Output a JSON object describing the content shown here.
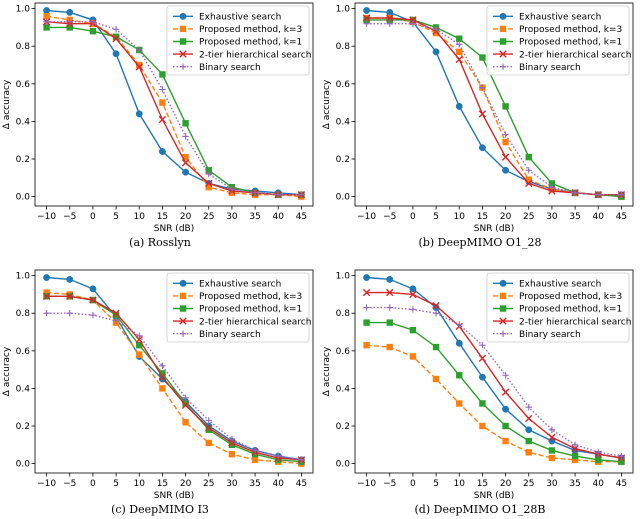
{
  "chart_data": [
    {
      "type": "line",
      "caption": "(a) Rosslyn",
      "xlabel": "SNR (dB)",
      "ylabel": "Δ accuracy",
      "x": [
        -10,
        -5,
        0,
        5,
        10,
        15,
        20,
        25,
        30,
        35,
        40,
        45
      ],
      "xlim": [
        -12.5,
        47.5
      ],
      "ylim": [
        -0.05,
        1.03
      ],
      "xticks": [
        "−10",
        "−5",
        "0",
        "5",
        "10",
        "15",
        "20",
        "25",
        "30",
        "35",
        "40",
        "45"
      ],
      "yticks": [
        "0.0",
        "0.2",
        "0.4",
        "0.6",
        "0.8",
        "1.0"
      ],
      "legend_position": "top-right",
      "series": [
        {
          "name": "Exhaustive search",
          "color": "#1f77b4",
          "marker": "circle",
          "dash": "solid",
          "values": [
            0.99,
            0.98,
            0.94,
            0.76,
            0.44,
            0.24,
            0.13,
            0.07,
            0.04,
            0.03,
            0.02,
            0.01
          ]
        },
        {
          "name": "Proposed method, k=3",
          "color": "#ff7f0e",
          "marker": "square",
          "dash": "dashed",
          "values": [
            0.96,
            0.94,
            0.92,
            0.85,
            0.7,
            0.5,
            0.21,
            0.05,
            0.02,
            0.01,
            0.01,
            0.0
          ]
        },
        {
          "name": "Proposed method, k=1",
          "color": "#2ca02c",
          "marker": "square",
          "dash": "solid",
          "values": [
            0.9,
            0.9,
            0.88,
            0.85,
            0.78,
            0.65,
            0.39,
            0.14,
            0.05,
            0.02,
            0.01,
            0.01
          ]
        },
        {
          "name": "2-tier hierarchical search",
          "color": "#d62728",
          "marker": "x",
          "dash": "solid",
          "values": [
            0.93,
            0.92,
            0.92,
            0.84,
            0.69,
            0.41,
            0.18,
            0.07,
            0.03,
            0.02,
            0.01,
            0.01
          ]
        },
        {
          "name": "Binary search",
          "color": "#9467bd",
          "marker": "plus",
          "dash": "dotted",
          "values": [
            0.93,
            0.93,
            0.93,
            0.89,
            0.78,
            0.57,
            0.32,
            0.12,
            0.04,
            0.02,
            0.01,
            0.01
          ]
        }
      ]
    },
    {
      "type": "line",
      "caption": "(b) DeepMIMO O1_28",
      "xlabel": "SNR (dB)",
      "ylabel": "Δ accuracy",
      "x": [
        -10,
        -5,
        0,
        5,
        10,
        15,
        20,
        25,
        30,
        35,
        40,
        45
      ],
      "xlim": [
        -12.5,
        47.5
      ],
      "ylim": [
        -0.05,
        1.03
      ],
      "xticks": [
        "−10",
        "−5",
        "0",
        "5",
        "10",
        "15",
        "20",
        "25",
        "30",
        "35",
        "40",
        "45"
      ],
      "yticks": [
        "0.0",
        "0.2",
        "0.4",
        "0.6",
        "0.8",
        "1.0"
      ],
      "legend_position": "top-right",
      "series": [
        {
          "name": "Exhaustive search",
          "color": "#1f77b4",
          "marker": "circle",
          "dash": "solid",
          "values": [
            0.99,
            0.98,
            0.93,
            0.77,
            0.48,
            0.26,
            0.14,
            0.08,
            0.04,
            0.02,
            0.01,
            0.01
          ]
        },
        {
          "name": "Proposed method, k=3",
          "color": "#ff7f0e",
          "marker": "square",
          "dash": "dashed",
          "values": [
            0.95,
            0.95,
            0.93,
            0.87,
            0.77,
            0.58,
            0.29,
            0.09,
            0.04,
            0.02,
            0.01,
            0.0
          ]
        },
        {
          "name": "Proposed method, k=1",
          "color": "#2ca02c",
          "marker": "square",
          "dash": "solid",
          "values": [
            0.94,
            0.94,
            0.94,
            0.9,
            0.84,
            0.74,
            0.48,
            0.21,
            0.07,
            0.02,
            0.01,
            0.0
          ]
        },
        {
          "name": "2-tier hierarchical search",
          "color": "#d62728",
          "marker": "x",
          "dash": "solid",
          "values": [
            0.95,
            0.95,
            0.94,
            0.88,
            0.73,
            0.44,
            0.21,
            0.07,
            0.03,
            0.02,
            0.01,
            0.01
          ]
        },
        {
          "name": "Binary search",
          "color": "#9467bd",
          "marker": "plus",
          "dash": "dotted",
          "values": [
            0.92,
            0.92,
            0.92,
            0.89,
            0.81,
            0.58,
            0.33,
            0.14,
            0.05,
            0.02,
            0.01,
            0.01
          ]
        }
      ]
    },
    {
      "type": "line",
      "caption": "(c) DeepMIMO I3",
      "xlabel": "SNR (dB)",
      "ylabel": "Δ accuracy",
      "x": [
        -10,
        -5,
        0,
        5,
        10,
        15,
        20,
        25,
        30,
        35,
        40,
        45
      ],
      "xlim": [
        -12.5,
        47.5
      ],
      "ylim": [
        -0.05,
        1.03
      ],
      "xticks": [
        "−10",
        "−5",
        "0",
        "5",
        "10",
        "15",
        "20",
        "25",
        "30",
        "35",
        "40",
        "45"
      ],
      "yticks": [
        "0.0",
        "0.2",
        "0.4",
        "0.6",
        "0.8",
        "1.0"
      ],
      "legend_position": "top-right",
      "series": [
        {
          "name": "Exhaustive search",
          "color": "#1f77b4",
          "marker": "circle",
          "dash": "solid",
          "values": [
            0.99,
            0.98,
            0.93,
            0.78,
            0.57,
            0.45,
            0.33,
            0.2,
            0.12,
            0.07,
            0.04,
            0.02
          ]
        },
        {
          "name": "Proposed method, k=3",
          "color": "#ff7f0e",
          "marker": "square",
          "dash": "dashed",
          "values": [
            0.91,
            0.9,
            0.87,
            0.75,
            0.58,
            0.4,
            0.22,
            0.11,
            0.05,
            0.02,
            0.01,
            0.0
          ]
        },
        {
          "name": "Proposed method, k=1",
          "color": "#2ca02c",
          "marker": "square",
          "dash": "solid",
          "values": [
            0.89,
            0.89,
            0.87,
            0.79,
            0.63,
            0.48,
            0.32,
            0.18,
            0.1,
            0.05,
            0.02,
            0.01
          ]
        },
        {
          "name": "2-tier hierarchical search",
          "color": "#d62728",
          "marker": "x",
          "dash": "solid",
          "values": [
            0.89,
            0.89,
            0.87,
            0.8,
            0.66,
            0.46,
            0.31,
            0.19,
            0.11,
            0.06,
            0.03,
            0.02
          ]
        },
        {
          "name": "Binary search",
          "color": "#9467bd",
          "marker": "plus",
          "dash": "dotted",
          "values": [
            0.8,
            0.8,
            0.79,
            0.76,
            0.68,
            0.52,
            0.35,
            0.23,
            0.13,
            0.07,
            0.04,
            0.02
          ]
        }
      ]
    },
    {
      "type": "line",
      "caption": "(d) DeepMIMO O1_28B",
      "xlabel": "SNR (dB)",
      "ylabel": "Δ accuracy",
      "x": [
        -10,
        -5,
        0,
        5,
        10,
        15,
        20,
        25,
        30,
        35,
        40,
        45
      ],
      "xlim": [
        -12.5,
        47.5
      ],
      "ylim": [
        -0.05,
        1.03
      ],
      "xticks": [
        "−10",
        "−5",
        "0",
        "5",
        "10",
        "15",
        "20",
        "25",
        "30",
        "35",
        "40",
        "45"
      ],
      "yticks": [
        "0.0",
        "0.2",
        "0.4",
        "0.6",
        "0.8",
        "1.0"
      ],
      "legend_position": "top-right",
      "series": [
        {
          "name": "Exhaustive search",
          "color": "#1f77b4",
          "marker": "circle",
          "dash": "solid",
          "values": [
            0.99,
            0.98,
            0.93,
            0.83,
            0.64,
            0.46,
            0.29,
            0.18,
            0.12,
            0.07,
            0.05,
            0.03
          ]
        },
        {
          "name": "Proposed method, k=3",
          "color": "#ff7f0e",
          "marker": "square",
          "dash": "dashed",
          "values": [
            0.63,
            0.62,
            0.57,
            0.45,
            0.32,
            0.2,
            0.12,
            0.06,
            0.03,
            0.02,
            0.01,
            0.01
          ]
        },
        {
          "name": "Proposed method, k=1",
          "color": "#2ca02c",
          "marker": "square",
          "dash": "solid",
          "values": [
            0.75,
            0.75,
            0.71,
            0.62,
            0.47,
            0.32,
            0.2,
            0.12,
            0.07,
            0.04,
            0.02,
            0.01
          ]
        },
        {
          "name": "2-tier hierarchical search",
          "color": "#d62728",
          "marker": "x",
          "dash": "solid",
          "values": [
            0.91,
            0.91,
            0.9,
            0.84,
            0.73,
            0.56,
            0.38,
            0.24,
            0.14,
            0.08,
            0.05,
            0.03
          ]
        },
        {
          "name": "Binary search",
          "color": "#9467bd",
          "marker": "plus",
          "dash": "dotted",
          "values": [
            0.83,
            0.83,
            0.82,
            0.8,
            0.74,
            0.63,
            0.47,
            0.3,
            0.18,
            0.1,
            0.06,
            0.04
          ]
        }
      ]
    }
  ]
}
